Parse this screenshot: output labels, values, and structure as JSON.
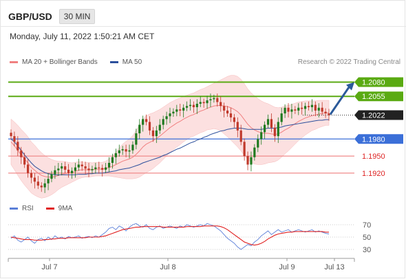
{
  "header": {
    "symbol": "GBP/USD",
    "timeframe": "30 MIN"
  },
  "datetime": "Monday, July 11, 2022 1:50:21 AM CET",
  "legend": {
    "ma20_label": "MA 20 + Bollinger Bands",
    "ma50_label": "MA 50",
    "copyright": "Research © 2022 Trading Central"
  },
  "rsi_legend": {
    "rsi_label": "RSI",
    "ma9_label": "9MA"
  },
  "colors": {
    "up_candle": "#1f7a1f",
    "down_candle": "#c0392b",
    "bollinger_fill": "#fbd5d5",
    "ma20": "#f08080",
    "ma50": "#2b4f9c",
    "resistance": "#5aaa12",
    "support_blue": "#3b6fd8",
    "support_red": "#f08a8a",
    "arrow": "#2b5a9a",
    "rsi": "#5b7fd8",
    "rsi_ma": "#e02020"
  },
  "chart_data": {
    "type": "candlestick",
    "price_levels": [
      {
        "value": "1.2080",
        "kind": "resistance"
      },
      {
        "value": "1.2055",
        "kind": "resistance"
      },
      {
        "value": "1.2022",
        "kind": "current"
      },
      {
        "value": "1.1980",
        "kind": "support"
      },
      {
        "value": "1.1950",
        "kind": "support"
      },
      {
        "value": "1.1920",
        "kind": "support"
      }
    ],
    "price_range": [
      1.188,
      1.21
    ],
    "x_labels": [
      "Jul 7",
      "Jul 8",
      "Jul 9",
      "Jul 13"
    ],
    "closes": [
      1.1985,
      1.1975,
      1.196,
      1.1948,
      1.1935,
      1.192,
      1.1912,
      1.1905,
      1.1898,
      1.1895,
      1.1902,
      1.191,
      1.1918,
      1.1925,
      1.1928,
      1.1932,
      1.1926,
      1.192,
      1.1924,
      1.193,
      1.1935,
      1.1932,
      1.1928,
      1.1925,
      1.1927,
      1.193,
      1.1929,
      1.1926,
      1.193,
      1.1938,
      1.1948,
      1.1955,
      1.196,
      1.1962,
      1.1958,
      1.196,
      1.197,
      1.199,
      1.2005,
      1.2015,
      1.201,
      1.1995,
      1.1985,
      1.1995,
      1.2005,
      1.2015,
      1.202,
      1.2025,
      1.2028,
      1.2032,
      1.203,
      1.2035,
      1.2038,
      1.204,
      1.2036,
      1.2042,
      1.2045,
      1.2043,
      1.2048,
      1.205,
      1.2052,
      1.2045,
      1.2038,
      1.203,
      1.2025,
      1.2018,
      1.201,
      1.1995,
      1.1975,
      1.195,
      1.1935,
      1.1948,
      1.1965,
      1.198,
      1.1992,
      1.2005,
      1.2015,
      1.2,
      1.1985,
      1.201,
      1.2025,
      1.2035,
      1.2028,
      1.2032,
      1.203,
      1.2035,
      1.2033,
      1.2038,
      1.2036,
      1.204,
      1.203,
      1.2035,
      1.2028,
      1.2025,
      1.2022
    ],
    "ma20": [
      1.1975,
      1.1968,
      1.196,
      1.1952,
      1.1945,
      1.1938,
      1.193,
      1.1925,
      1.192,
      1.1916,
      1.1914,
      1.1913,
      1.1913,
      1.1914,
      1.1916,
      1.1918,
      1.1919,
      1.192,
      1.1921,
      1.1923,
      1.1925,
      1.1926,
      1.1926,
      1.1926,
      1.1926,
      1.1927,
      1.1927,
      1.1927,
      1.1928,
      1.193,
      1.1932,
      1.1935,
      1.1938,
      1.1941,
      1.1943,
      1.1945,
      1.1948,
      1.1953,
      1.1959,
      1.1966,
      1.1971,
      1.1974,
      1.1977,
      1.1981,
      1.1985,
      1.199,
      1.1995,
      1.2,
      1.2004,
      1.2008,
      1.2011,
      1.2015,
      1.2018,
      1.2021,
      1.2023,
      1.2026,
      1.2029,
      1.2031,
      1.2034,
      1.2036,
      1.2038,
      1.2039,
      1.2039,
      1.2038,
      1.2037,
      1.2035,
      1.2032,
      1.2028,
      1.2022,
      1.2014,
      1.2006,
      1.2,
      1.1996,
      1.1993,
      1.1991,
      1.199,
      1.199,
      1.1989,
      1.1988,
      1.1989,
      1.1992,
      1.1996,
      1.1999,
      1.2003,
      1.2007,
      1.2011,
      1.2014,
      1.2017,
      1.2019,
      1.2021,
      1.2022,
      1.2024,
      1.2025,
      1.2026,
      1.2026
    ],
    "ma50": [
      1.198,
      1.1975,
      1.1968,
      1.196,
      1.1952,
      1.1945,
      1.1938,
      1.1932,
      1.1928,
      1.1924,
      1.1921,
      1.1919,
      1.1918,
      1.1917,
      1.1917,
      1.1917,
      1.1917,
      1.1917,
      1.1917,
      1.1917,
      1.1918,
      1.1918,
      1.1918,
      1.1919,
      1.1919,
      1.192,
      1.192,
      1.192,
      1.1921,
      1.1922,
      1.1923,
      1.1924,
      1.1926,
      1.1927,
      1.1928,
      1.1929,
      1.1931,
      1.1933,
      1.1935,
      1.1938,
      1.194,
      1.1942,
      1.1944,
      1.1946,
      1.1948,
      1.1951,
      1.1953,
      1.1956,
      1.1959,
      1.1962,
      1.1964,
      1.1967,
      1.197,
      1.1973,
      1.1975,
      1.1978,
      1.198,
      1.1983,
      1.1985,
      1.1988,
      1.199,
      1.1992,
      1.1994,
      1.1995,
      1.1997,
      1.1998,
      1.1999,
      1.1999,
      1.1999,
      1.1998,
      1.1997,
      1.1997,
      1.1997,
      1.1997,
      1.1997,
      1.1998,
      1.1999,
      1.1999,
      1.1999,
      1.2,
      1.2001,
      1.2003,
      1.2004,
      1.2005,
      1.2006,
      1.2007,
      1.2008,
      1.2009,
      1.201,
      1.2011,
      1.2012,
      1.2013,
      1.2013,
      1.2014,
      1.2014
    ],
    "band_width": [
      0.004,
      0.0042,
      0.0044,
      0.0045,
      0.0046,
      0.0046,
      0.0045,
      0.0044,
      0.0042,
      0.004,
      0.0037,
      0.0034,
      0.0031,
      0.0028,
      0.0025,
      0.0023,
      0.0021,
      0.0019,
      0.0017,
      0.0016,
      0.0015,
      0.0014,
      0.0013,
      0.0013,
      0.0012,
      0.0012,
      0.0012,
      0.0012,
      0.0013,
      0.0015,
      0.0018,
      0.0022,
      0.0026,
      0.003,
      0.0033,
      0.0035,
      0.0038,
      0.0042,
      0.0046,
      0.0049,
      0.005,
      0.005,
      0.0049,
      0.0048,
      0.0047,
      0.0046,
      0.0045,
      0.0044,
      0.0043,
      0.0042,
      0.0041,
      0.004,
      0.0039,
      0.0038,
      0.0038,
      0.0038,
      0.0038,
      0.0038,
      0.0038,
      0.0039,
      0.004,
      0.0042,
      0.0045,
      0.0049,
      0.0053,
      0.0057,
      0.006,
      0.0062,
      0.0063,
      0.0063,
      0.0062,
      0.0061,
      0.006,
      0.0058,
      0.0056,
      0.0054,
      0.0052,
      0.005,
      0.0048,
      0.0046,
      0.0044,
      0.0042,
      0.004,
      0.0038,
      0.0036,
      0.0034,
      0.0032,
      0.003,
      0.0028,
      0.0026,
      0.0025,
      0.0024,
      0.0023,
      0.0022,
      0.0022
    ],
    "rsi": {
      "levels": [
        "70",
        "50",
        "30"
      ],
      "rsi_values": [
        48,
        52,
        45,
        42,
        46,
        50,
        44,
        40,
        46,
        48,
        44,
        50,
        46,
        52,
        48,
        50,
        47,
        51,
        49,
        50,
        52,
        48,
        50,
        51,
        49,
        52,
        50,
        54,
        58,
        64,
        66,
        62,
        68,
        65,
        60,
        66,
        70,
        72,
        68,
        66,
        70,
        64,
        62,
        66,
        68,
        64,
        66,
        68,
        66,
        64,
        68,
        66,
        70,
        68,
        66,
        68,
        70,
        68,
        72,
        70,
        68,
        64,
        60,
        54,
        48,
        44,
        40,
        34,
        30,
        34,
        38,
        36,
        42,
        46,
        52,
        56,
        60,
        54,
        58,
        62,
        58,
        60,
        62,
        58,
        60,
        62,
        60,
        58,
        60,
        62,
        58,
        60,
        58,
        56,
        55
      ],
      "ma9_values": [
        50,
        49,
        48,
        47,
        46,
        46,
        46,
        45,
        45,
        45,
        46,
        46,
        47,
        47,
        48,
        48,
        48,
        49,
        49,
        49,
        49,
        49,
        49,
        50,
        50,
        50,
        50,
        51,
        52,
        54,
        56,
        58,
        60,
        62,
        63,
        64,
        65,
        66,
        66,
        67,
        67,
        67,
        67,
        67,
        67,
        66,
        66,
        66,
        66,
        66,
        66,
        66,
        67,
        67,
        67,
        67,
        67,
        68,
        68,
        68,
        68,
        68,
        67,
        65,
        62,
        58,
        54,
        50,
        46,
        42,
        40,
        38,
        37,
        38,
        40,
        43,
        47,
        50,
        53,
        55,
        56,
        57,
        58,
        58,
        59,
        59,
        59,
        59,
        59,
        59,
        59,
        59,
        59,
        58,
        58
      ]
    }
  }
}
